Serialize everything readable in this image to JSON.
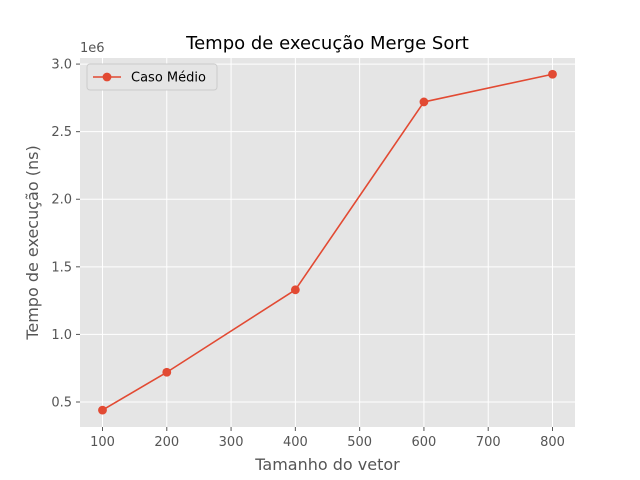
{
  "chart_data": {
    "type": "line",
    "title": "Tempo de execução Merge Sort",
    "xlabel": "Tamanho do vetor",
    "ylabel": "Tempo de execução (ns)",
    "y_offset_label": "1e6",
    "xlim": [
      65,
      835
    ],
    "ylim": [
      0.315,
      3.045
    ],
    "x_ticks": [
      100,
      200,
      300,
      400,
      500,
      600,
      700,
      800
    ],
    "y_ticks": [
      0.5,
      1.0,
      1.5,
      2.0,
      2.5,
      3.0
    ],
    "y_tick_labels": [
      "0.5",
      "1.0",
      "1.5",
      "2.0",
      "2.5",
      "3.0"
    ],
    "grid": true,
    "legend_position": "top-left",
    "series": [
      {
        "name": "Caso Médio",
        "color": "#e24a33",
        "marker": "circle",
        "x": [
          100,
          200,
          400,
          600,
          800
        ],
        "y": [
          0.44,
          0.72,
          1.33,
          2.72,
          2.925
        ]
      }
    ],
    "colors": {
      "plot_background": "#e5e5e5",
      "grid": "#ffffff",
      "text": "#555555"
    }
  }
}
